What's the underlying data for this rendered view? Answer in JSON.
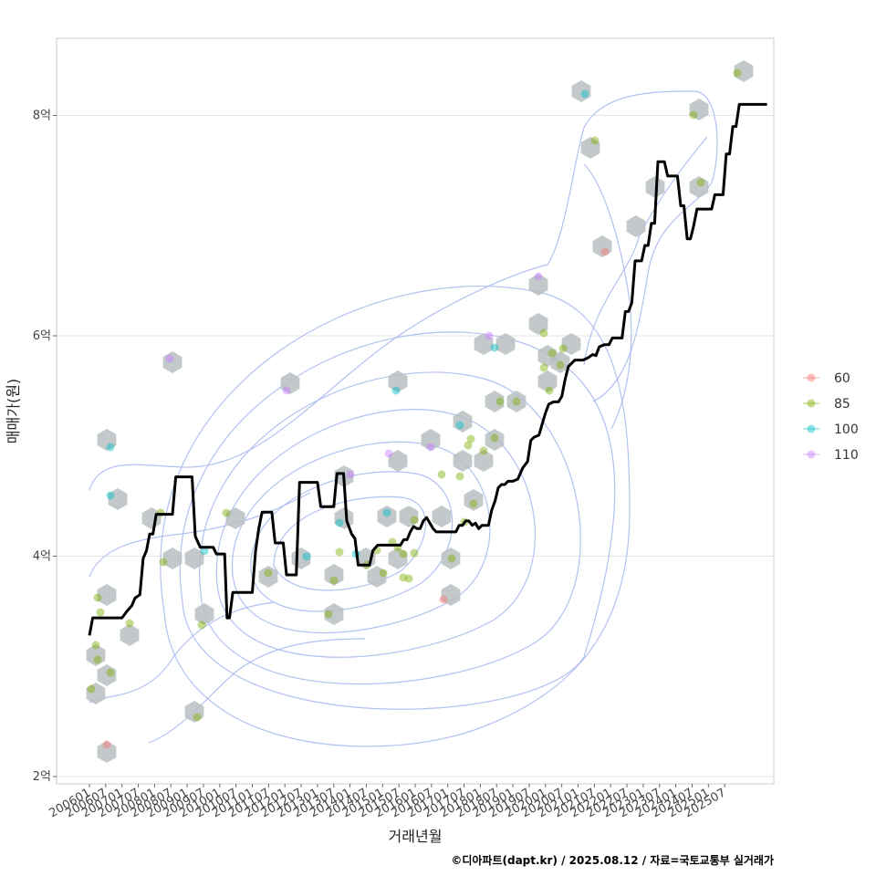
{
  "chart_data": {
    "type": "line",
    "xlabel": "거래년월",
    "ylabel": "매매가(원)",
    "caption": "©디아파트(dapt.kr) / 2025.08.12 / 자료=국토교통부 실거래가",
    "x_ticks": [
      "200601",
      "200607",
      "200701",
      "200707",
      "200801",
      "200807",
      "200901",
      "200907",
      "201001",
      "201007",
      "201101",
      "201107",
      "201201",
      "201207",
      "201301",
      "201307",
      "201401",
      "201407",
      "201501",
      "201507",
      "201601",
      "201607",
      "201701",
      "201707",
      "201801",
      "201807",
      "201901",
      "201907",
      "202001",
      "202007",
      "202101",
      "202107",
      "202201",
      "202207",
      "202301",
      "202307",
      "202401",
      "202407",
      "202501",
      "202507"
    ],
    "y_ticks": [
      {
        "value": 2,
        "label": "2억"
      },
      {
        "value": 4,
        "label": "4억"
      },
      {
        "value": 6,
        "label": "6억"
      },
      {
        "value": 8,
        "label": "8억"
      }
    ],
    "ylim": [
      1.97,
      8.76
    ],
    "xlim": [
      -1.9,
      41.7
    ],
    "grid": true,
    "legend_position": "right",
    "legend": [
      {
        "name": "60",
        "color": "#F8766D"
      },
      {
        "name": "85",
        "color": "#7CAE00"
      },
      {
        "name": "100",
        "color": "#00BFC4"
      },
      {
        "name": "110",
        "color": "#C77CFF"
      }
    ],
    "colors": {
      "line": "#000000",
      "contour": "#aabbee",
      "hexbin": "#b8bec2",
      "grid": "#e6e6e6",
      "panel_border": "#cccccc"
    },
    "series": [
      {
        "name": "",
        "values": [
          [
            0.0,
            3.28
          ],
          [
            0.2,
            3.44
          ],
          [
            0.5,
            3.44
          ],
          [
            1.0,
            3.44
          ],
          [
            1.5,
            3.44
          ],
          [
            2.0,
            3.44
          ],
          [
            2.3,
            3.5
          ],
          [
            2.6,
            3.55
          ],
          [
            2.8,
            3.62
          ],
          [
            3.1,
            3.65
          ],
          [
            3.3,
            3.98
          ],
          [
            3.5,
            4.05
          ],
          [
            3.7,
            4.2
          ],
          [
            3.9,
            4.2
          ],
          [
            4.1,
            4.38
          ],
          [
            4.5,
            4.38
          ],
          [
            4.9,
            4.38
          ],
          [
            5.1,
            4.38
          ],
          [
            5.3,
            4.72
          ],
          [
            5.7,
            4.72
          ],
          [
            6.1,
            4.72
          ],
          [
            6.3,
            4.72
          ],
          [
            6.5,
            4.18
          ],
          [
            6.8,
            4.08
          ],
          [
            7.3,
            4.08
          ],
          [
            7.6,
            4.08
          ],
          [
            7.8,
            4.02
          ],
          [
            8.1,
            4.02
          ],
          [
            8.3,
            4.02
          ],
          [
            8.45,
            3.44
          ],
          [
            8.6,
            3.44
          ],
          [
            8.8,
            3.67
          ],
          [
            9.2,
            3.67
          ],
          [
            9.6,
            3.67
          ],
          [
            10.0,
            3.67
          ],
          [
            10.2,
            4.05
          ],
          [
            10.4,
            4.25
          ],
          [
            10.6,
            4.4
          ],
          [
            11.0,
            4.4
          ],
          [
            11.2,
            4.4
          ],
          [
            11.4,
            4.12
          ],
          [
            11.7,
            4.12
          ],
          [
            11.9,
            4.12
          ],
          [
            12.1,
            3.83
          ],
          [
            12.5,
            3.83
          ],
          [
            12.7,
            3.83
          ],
          [
            12.9,
            4.67
          ],
          [
            13.3,
            4.67
          ],
          [
            13.8,
            4.67
          ],
          [
            14.0,
            4.67
          ],
          [
            14.2,
            4.45
          ],
          [
            14.6,
            4.45
          ],
          [
            15.0,
            4.45
          ],
          [
            15.2,
            4.75
          ],
          [
            15.6,
            4.75
          ],
          [
            15.8,
            4.32
          ],
          [
            16.1,
            4.2
          ],
          [
            16.3,
            4.16
          ],
          [
            16.5,
            3.92
          ],
          [
            16.8,
            3.92
          ],
          [
            17.0,
            3.92
          ],
          [
            17.2,
            3.92
          ],
          [
            17.4,
            4.05
          ],
          [
            17.7,
            4.1
          ],
          [
            18.1,
            4.1
          ],
          [
            18.5,
            4.1
          ],
          [
            18.9,
            4.1
          ],
          [
            19.1,
            4.1
          ],
          [
            19.3,
            4.15
          ],
          [
            19.5,
            4.15
          ],
          [
            19.7,
            4.22
          ],
          [
            19.9,
            4.27
          ],
          [
            20.1,
            4.25
          ],
          [
            20.3,
            4.25
          ],
          [
            20.5,
            4.32
          ],
          [
            20.7,
            4.35
          ],
          [
            20.9,
            4.3
          ],
          [
            21.1,
            4.25
          ],
          [
            21.3,
            4.22
          ],
          [
            21.7,
            4.22
          ],
          [
            22.1,
            4.22
          ],
          [
            22.3,
            4.22
          ],
          [
            22.5,
            4.22
          ],
          [
            22.7,
            4.28
          ],
          [
            22.9,
            4.28
          ],
          [
            23.1,
            4.32
          ],
          [
            23.3,
            4.32
          ],
          [
            23.5,
            4.28
          ],
          [
            23.7,
            4.3
          ],
          [
            23.9,
            4.25
          ],
          [
            24.1,
            4.28
          ],
          [
            24.3,
            4.28
          ],
          [
            24.5,
            4.28
          ],
          [
            24.7,
            4.42
          ],
          [
            24.9,
            4.5
          ],
          [
            25.1,
            4.62
          ],
          [
            25.3,
            4.65
          ],
          [
            25.5,
            4.65
          ],
          [
            25.7,
            4.68
          ],
          [
            26.0,
            4.68
          ],
          [
            26.3,
            4.7
          ],
          [
            26.6,
            4.8
          ],
          [
            26.9,
            4.86
          ],
          [
            27.1,
            5.05
          ],
          [
            27.3,
            5.08
          ],
          [
            27.6,
            5.1
          ],
          [
            27.8,
            5.2
          ],
          [
            28.0,
            5.3
          ],
          [
            28.2,
            5.38
          ],
          [
            28.5,
            5.4
          ],
          [
            28.8,
            5.4
          ],
          [
            29.0,
            5.45
          ],
          [
            29.2,
            5.6
          ],
          [
            29.4,
            5.72
          ],
          [
            29.6,
            5.75
          ],
          [
            29.8,
            5.78
          ],
          [
            30.0,
            5.78
          ],
          [
            30.3,
            5.78
          ],
          [
            30.6,
            5.8
          ],
          [
            30.9,
            5.83
          ],
          [
            31.1,
            5.82
          ],
          [
            31.3,
            5.9
          ],
          [
            31.6,
            5.92
          ],
          [
            31.9,
            5.92
          ],
          [
            32.1,
            5.98
          ],
          [
            32.4,
            5.98
          ],
          [
            32.7,
            5.98
          ],
          [
            32.9,
            6.22
          ],
          [
            33.1,
            6.22
          ],
          [
            33.3,
            6.3
          ],
          [
            33.5,
            6.68
          ],
          [
            33.7,
            6.68
          ],
          [
            33.9,
            6.68
          ],
          [
            34.1,
            6.82
          ],
          [
            34.3,
            6.82
          ],
          [
            34.5,
            7.02
          ],
          [
            34.7,
            7.02
          ],
          [
            34.9,
            7.58
          ],
          [
            35.1,
            7.58
          ],
          [
            35.3,
            7.58
          ],
          [
            35.5,
            7.45
          ],
          [
            35.7,
            7.45
          ],
          [
            35.9,
            7.45
          ],
          [
            36.1,
            7.45
          ],
          [
            36.3,
            7.18
          ],
          [
            36.5,
            7.18
          ],
          [
            36.7,
            6.88
          ],
          [
            36.9,
            6.88
          ],
          [
            37.1,
            7.0
          ],
          [
            37.3,
            7.15
          ],
          [
            37.6,
            7.15
          ],
          [
            37.9,
            7.15
          ],
          [
            38.2,
            7.15
          ],
          [
            38.4,
            7.28
          ],
          [
            38.7,
            7.28
          ],
          [
            38.9,
            7.28
          ],
          [
            39.1,
            7.65
          ],
          [
            39.3,
            7.65
          ],
          [
            39.5,
            7.9
          ],
          [
            39.7,
            7.9
          ],
          [
            39.9,
            8.1
          ],
          [
            40.2,
            8.1
          ],
          [
            40.5,
            8.1
          ],
          [
            40.8,
            8.1
          ],
          [
            41.0,
            8.1
          ],
          [
            41.2,
            8.1
          ],
          [
            41.4,
            8.1
          ],
          [
            41.6,
            8.1
          ]
        ]
      }
    ]
  }
}
